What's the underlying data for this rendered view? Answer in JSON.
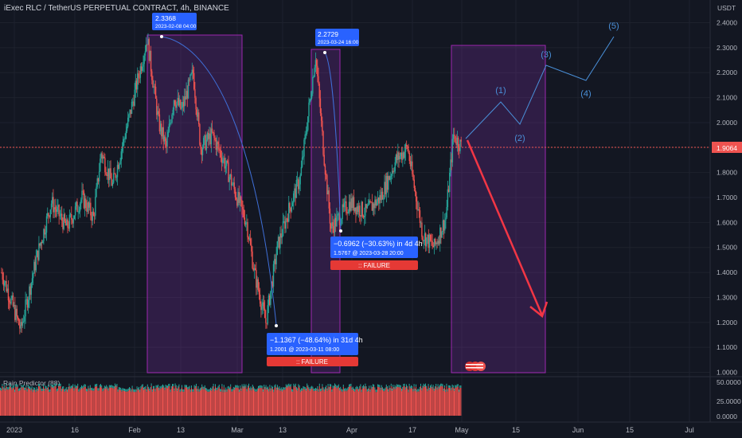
{
  "header": {
    "symbol_title": "iExec RLC / TetherUS PERPETUAL CONTRACT, 4h, BINANCE",
    "currency": "USDT"
  },
  "price_scale": {
    "ticks": [
      "2.4000",
      "2.3000",
      "2.2000",
      "2.1000",
      "2.0000",
      "1.9000",
      "1.8000",
      "1.7000",
      "1.6000",
      "1.5000",
      "1.4000",
      "1.3000",
      "1.2000",
      "1.1000",
      "1.0000"
    ],
    "last_price_label": "1.9064",
    "last_price": 1.9064
  },
  "time_scale": {
    "labels": [
      "2023",
      "16",
      "Feb",
      "13",
      "Mar",
      "13",
      "Apr",
      "17",
      "May",
      "15",
      "Jun",
      "15",
      "Jul"
    ]
  },
  "indicator": {
    "name": "Rain Predictor (88)",
    "ticks": [
      "50.0000",
      "25.0000",
      "0.0000"
    ]
  },
  "colors": {
    "background": "#131722",
    "bull": "#26a69a",
    "bear": "#ef5350",
    "zone_fill": "#7b2fa0",
    "zone_border": "#9c27b0",
    "label_blue": "#2962ff",
    "failure_red": "#e53935",
    "wave_blue": "#4a90d9",
    "projection_red": "#f23645"
  },
  "annotations": {
    "peak1": {
      "price": "2.3368",
      "date": "2023-02-08 04:00"
    },
    "peak2": {
      "price": "2.2729",
      "date": "2023-03-24 16:00"
    },
    "drop1": {
      "line1": "−1.1367 (−48.64%) in 31d 4h",
      "line2": "1.2001 @ 2023-03-11  08:00",
      "failure": ":: FAILURE"
    },
    "drop2": {
      "line1": "−0.6962 (−30.63%) in 4d 4h",
      "line2": "1.5767 @ 2023-03-28  20:00",
      "failure": ":: FAILURE"
    },
    "waves": [
      "(1)",
      "(2)",
      "(3)",
      "(4)",
      "(5)"
    ]
  },
  "chart_data": {
    "type": "candlestick",
    "title": "iExec RLC / TetherUS PERPETUAL CONTRACT, 4h, BINANCE",
    "ylabel": "USDT",
    "ylim": [
      1.0,
      2.4
    ],
    "anchor_points": [
      {
        "date": "2023-01-01",
        "close": 1.4
      },
      {
        "date": "2023-01-06",
        "close": 1.17
      },
      {
        "date": "2023-01-10",
        "close": 1.45
      },
      {
        "date": "2023-01-14",
        "close": 1.68
      },
      {
        "date": "2023-01-18",
        "close": 1.58
      },
      {
        "date": "2023-01-22",
        "close": 1.7
      },
      {
        "date": "2023-01-25",
        "close": 1.62
      },
      {
        "date": "2023-01-27",
        "close": 1.88
      },
      {
        "date": "2023-01-30",
        "close": 1.75
      },
      {
        "date": "2023-02-03",
        "close": 2.0
      },
      {
        "date": "2023-02-08",
        "close": 2.3368
      },
      {
        "date": "2023-02-11",
        "close": 2.0
      },
      {
        "date": "2023-02-13",
        "close": 1.9
      },
      {
        "date": "2023-02-15",
        "close": 2.1
      },
      {
        "date": "2023-02-17",
        "close": 2.05
      },
      {
        "date": "2023-02-20",
        "close": 2.2
      },
      {
        "date": "2023-02-22",
        "close": 1.9
      },
      {
        "date": "2023-02-25",
        "close": 1.95
      },
      {
        "date": "2023-02-28",
        "close": 1.85
      },
      {
        "date": "2023-03-03",
        "close": 1.72
      },
      {
        "date": "2023-03-06",
        "close": 1.6
      },
      {
        "date": "2023-03-08",
        "close": 1.4
      },
      {
        "date": "2023-03-11",
        "close": 1.2001
      },
      {
        "date": "2023-03-14",
        "close": 1.5
      },
      {
        "date": "2023-03-17",
        "close": 1.65
      },
      {
        "date": "2023-03-20",
        "close": 1.78
      },
      {
        "date": "2023-03-24",
        "close": 2.2729
      },
      {
        "date": "2023-03-26",
        "close": 1.9
      },
      {
        "date": "2023-03-28",
        "close": 1.5767
      },
      {
        "date": "2023-04-02",
        "close": 1.68
      },
      {
        "date": "2023-04-06",
        "close": 1.64
      },
      {
        "date": "2023-04-10",
        "close": 1.7
      },
      {
        "date": "2023-04-14",
        "close": 1.85
      },
      {
        "date": "2023-04-17",
        "close": 1.9
      },
      {
        "date": "2023-04-19",
        "close": 1.72
      },
      {
        "date": "2023-04-21",
        "close": 1.55
      },
      {
        "date": "2023-04-24",
        "close": 1.5
      },
      {
        "date": "2023-04-27",
        "close": 1.62
      },
      {
        "date": "2023-04-29",
        "close": 1.95
      },
      {
        "date": "2023-05-01",
        "close": 1.9064
      }
    ],
    "projection_waves": [
      {
        "label": "(1)",
        "date": "2023-05-10",
        "price": 2.1
      },
      {
        "label": "(2)",
        "date": "2023-05-16",
        "price": 2.0
      },
      {
        "label": "(3)",
        "date": "2023-05-24",
        "price": 2.22
      },
      {
        "label": "(4)",
        "date": "2023-06-06",
        "price": 2.17
      },
      {
        "label": "(5)",
        "date": "2023-06-14",
        "price": 2.33
      }
    ],
    "projected_drop": {
      "from_date": "2023-05-01",
      "from_price": 1.93,
      "to_date": "2023-05-26",
      "to_price": 1.23
    },
    "indicator_series": {
      "name": "Rain Predictor (88)",
      "ylim": [
        0,
        60
      ],
      "typical_value": 45
    }
  }
}
